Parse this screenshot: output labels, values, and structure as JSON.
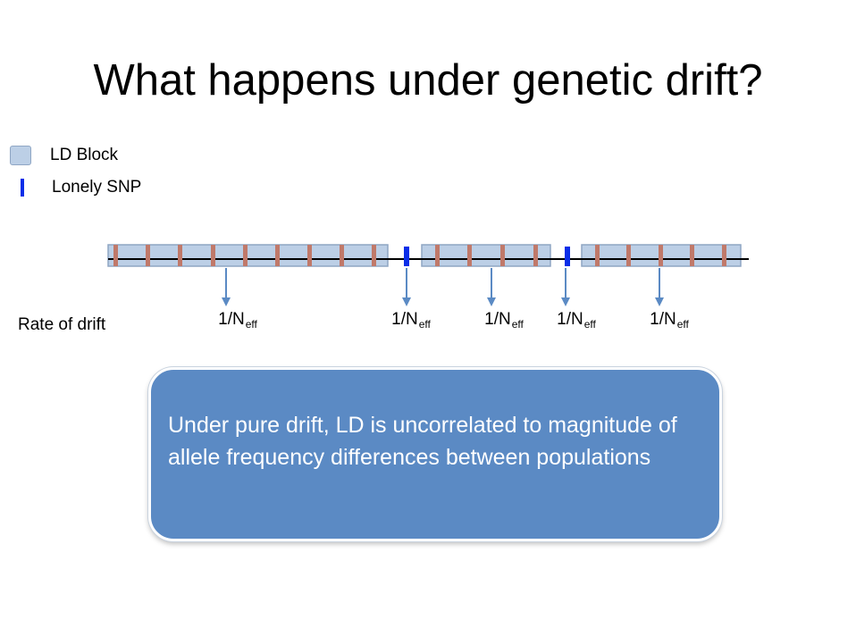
{
  "title": "What happens under genetic drift?",
  "legend": {
    "ld_block": "LD Block",
    "lonely_snp": "Lonely SNP"
  },
  "rate_label": "Rate of drift",
  "rate_value": {
    "base": "1/N",
    "sub": "eff"
  },
  "rates": [
    {
      "base": "1/N",
      "sub": "eff"
    },
    {
      "base": "1/N",
      "sub": "eff"
    },
    {
      "base": "1/N",
      "sub": "eff"
    },
    {
      "base": "1/N",
      "sub": "eff"
    },
    {
      "base": "1/N",
      "sub": "eff"
    }
  ],
  "callout": "Under pure drift, LD is uncorrelated to magnitude of allele frequency differences between populations",
  "colors": {
    "ld_block_fill": "#bccfe6",
    "ld_block_border": "#8fa6c4",
    "snp_in_block": "#c0796a",
    "lonely_snp": "#0a2ee8",
    "arrow": "#5b8ac4",
    "callout_fill": "#5b8ac4"
  }
}
